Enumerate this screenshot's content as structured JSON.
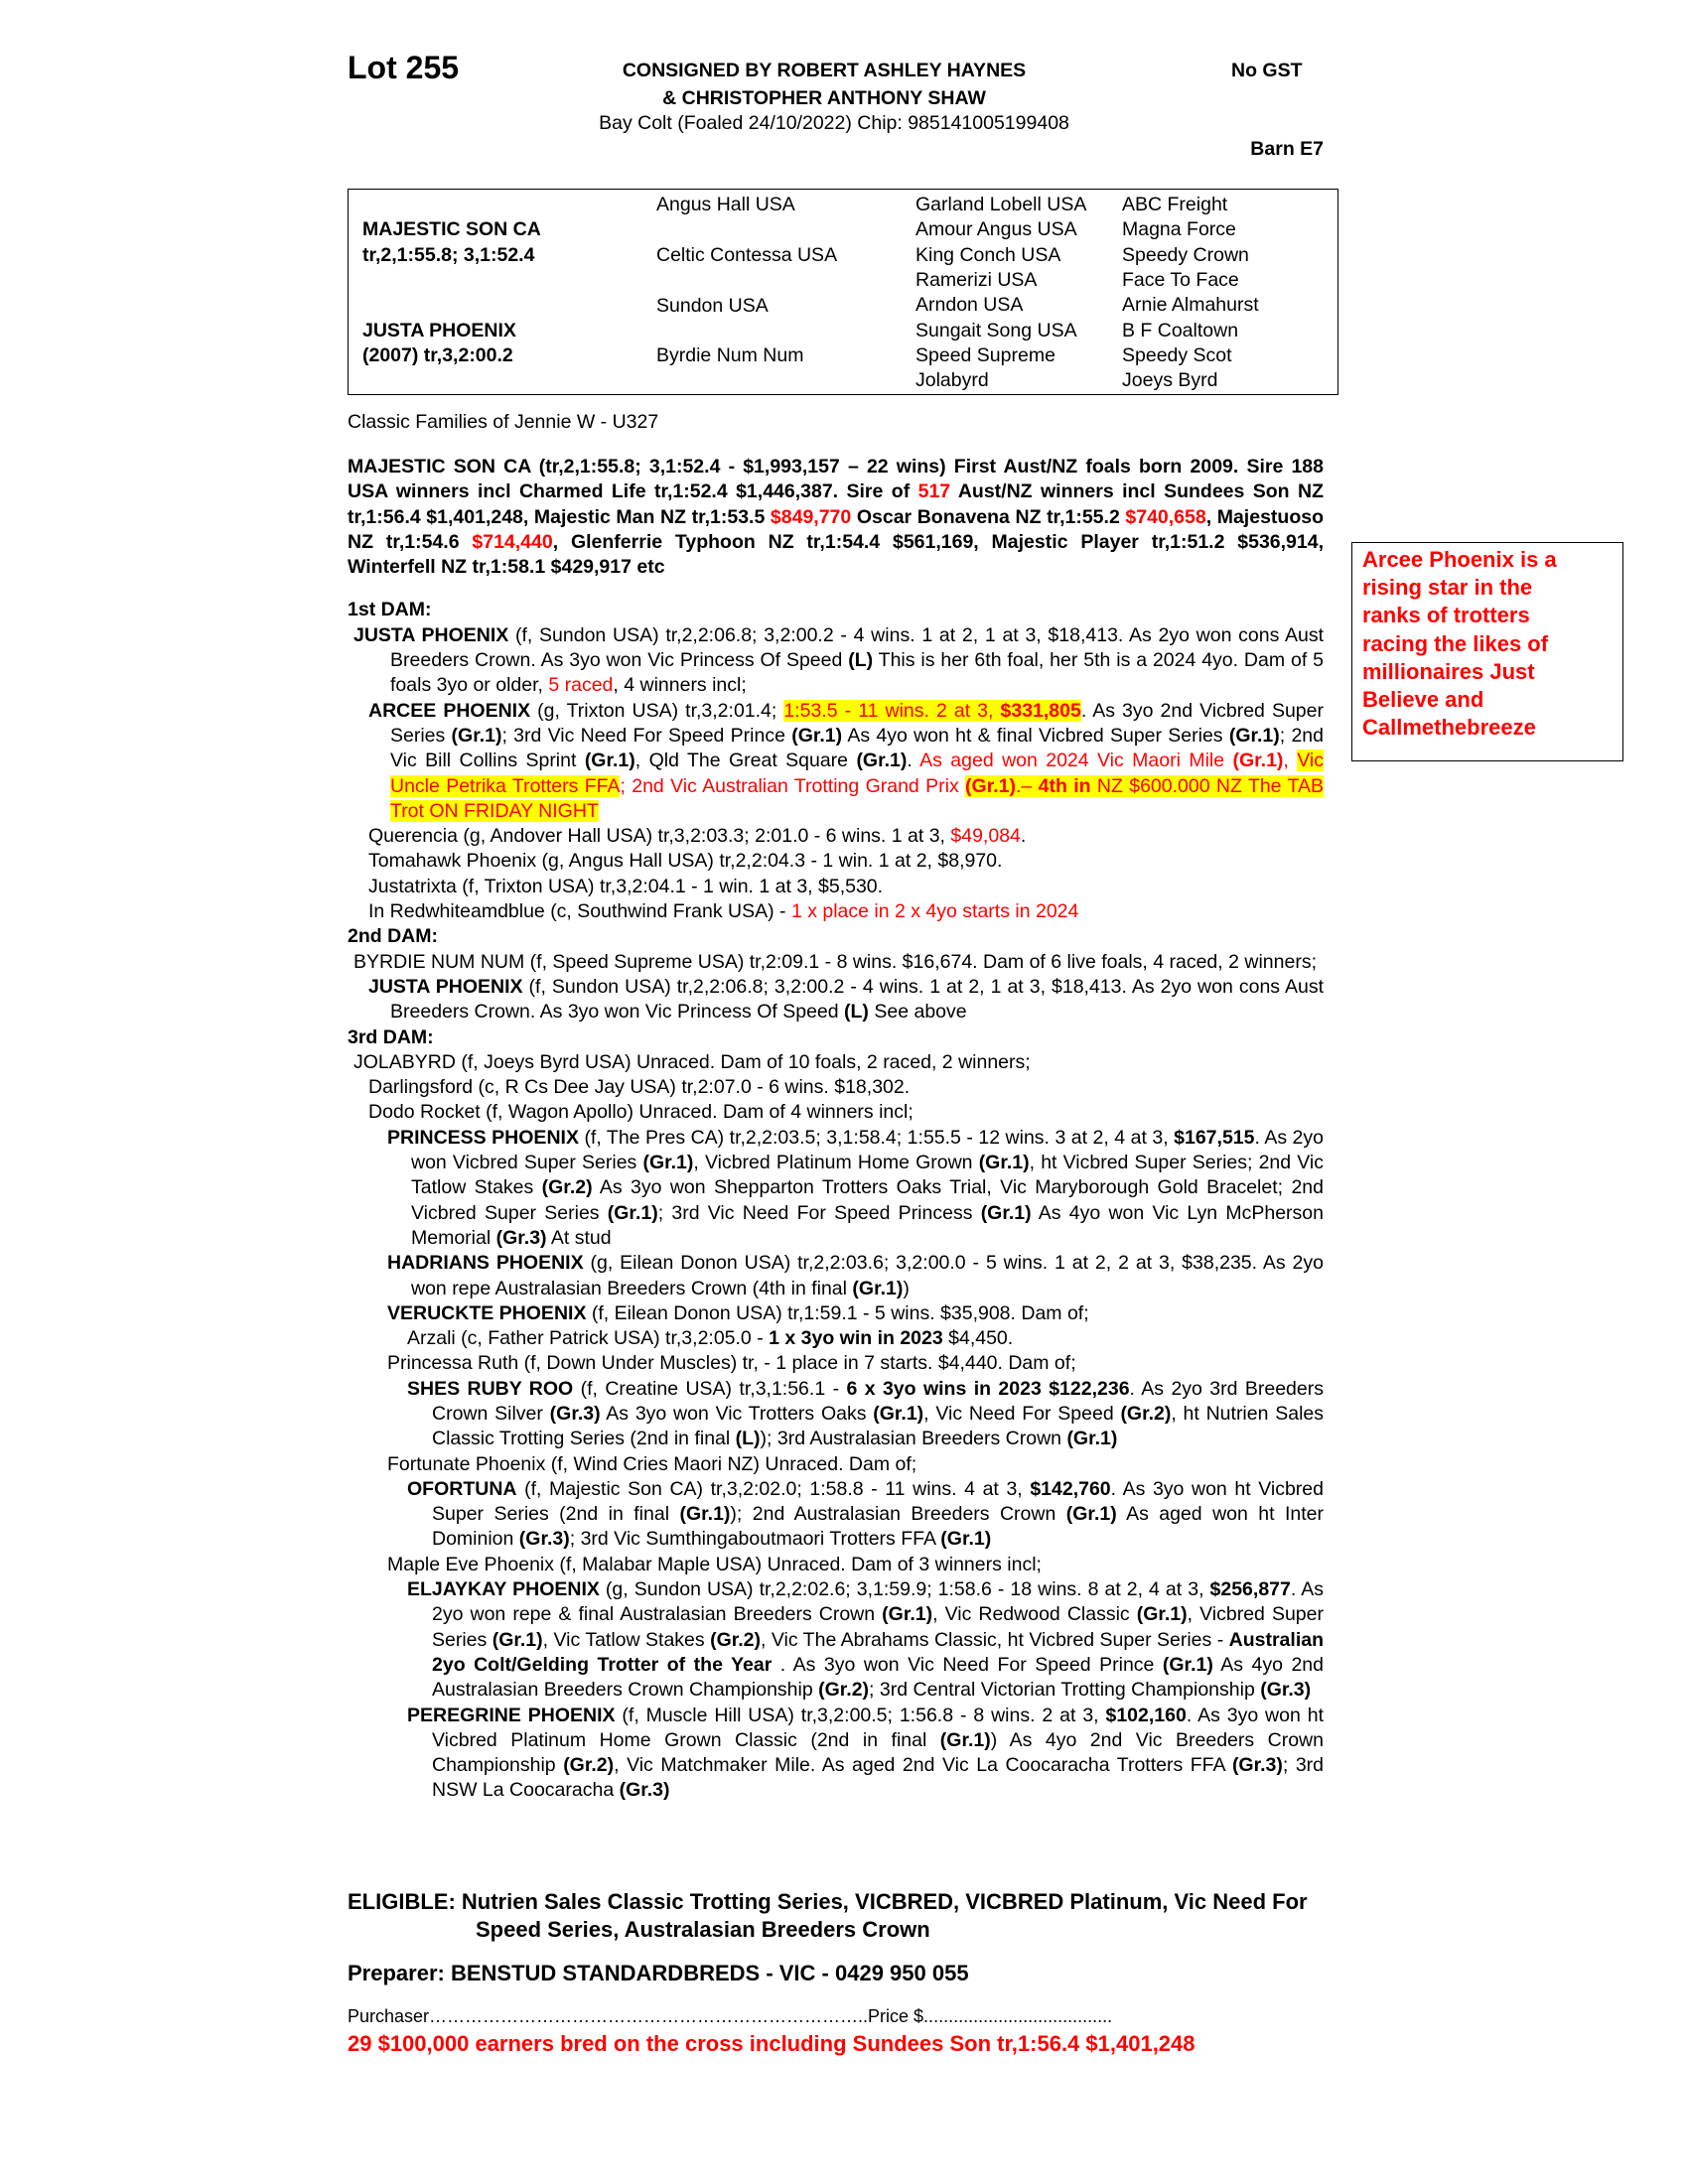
{
  "header": {
    "lot": "Lot 255",
    "consignor_line1": "CONSIGNED BY ROBERT ASHLEY HAYNES",
    "consignor_line2": "& CHRISTOPHER ANTHONY SHAW",
    "gst": "No GST",
    "description": "Bay Colt (Foaled  24/10/2022) Chip: 985141005199408",
    "barn": "Barn E7"
  },
  "pedigree": {
    "sire": "MAJESTIC SON CA",
    "sire_record": "tr,2,1:55.8; 3,1:52.4",
    "dam": "JUSTA PHOENIX",
    "dam_record": "(2007) tr,3,2:00.2",
    "grandparents": [
      "Angus Hall USA",
      "Celtic Contessa USA",
      "Sundon USA",
      "Byrdie Num Num"
    ],
    "great_grandparents": [
      "Garland Lobell USA",
      "Amour Angus USA",
      "King Conch USA",
      "Ramerizi USA",
      "Arndon USA",
      "Sungait Song USA",
      "Speed Supreme",
      "Jolabyrd"
    ],
    "third_generation": [
      "ABC Freight",
      "Magna Force",
      "Speedy Crown",
      "Face To Face",
      "Arnie Almahurst",
      "B F Coaltown",
      "Speedy Scot",
      "Joeys Byrd"
    ]
  },
  "family": "Classic Families of Jennie W - U327",
  "sidebar": [
    "Arcee Phoenix is a",
    "rising star in the",
    "ranks of trotters",
    "racing the likes of",
    "millionaires Just",
    "Believe and",
    "Callmethebreeze"
  ],
  "paragraphs": [
    [
      "MAJESTIC SON CA (tr,2,1:55.8; 3,1:52.4 - $1,993,157 – 22 wins) First Aust/NZ foals born 2009. Sire 188 USA winners incl Charmed Life tr,1:52.4 $1,446,387. Sire of ",
      {
        "text": "517",
        "style": "red"
      },
      " Aust/NZ winners incl Sundees Son NZ tr,1:56.4 $1,401,248, Majestic Man NZ tr,1:53.5 ",
      {
        "text": "$849,770",
        "style": "red"
      },
      " Oscar Bonavena NZ tr,1:55.2 ",
      {
        "text": "$740,658",
        "style": "red"
      },
      ", Majestuoso NZ tr,1:54.6 ",
      {
        "text": "$714,440",
        "style": "red"
      },
      ", Glenferrie Typhoon NZ tr,1:54.4 $561,169, Majestic Player tr,1:51.2 $536,914, Winterfell NZ tr,1:58.1 $429,917 etc"
    ],
    [
      "1st DAM:"
    ],
    [
      {
        "text": "JUSTA PHOENIX",
        "style": "bold"
      },
      " (f, Sundon USA) tr,2,2:06.8; 3,2:00.2 - 4 wins. 1 at 2, 1 at 3, $18,413. As 2yo won cons Aust Breeders Crown. As 3yo won Vic Princess Of Speed ",
      {
        "text": "(L)",
        "style": "bold"
      },
      " This is her 6th foal, her 5th is a 2024 4yo. Dam of 5 foals 3yo or older, ",
      {
        "text": "5 raced",
        "style": "red"
      },
      ", 4 winners incl;"
    ],
    [
      {
        "text": "ARCEE PHOENIX",
        "style": "bold"
      },
      " (g, Trixton USA) tr,3,2:01.4; ",
      {
        "text": "1:53.5 - 11 wins. 2 at 3, ",
        "style": "highlight-red"
      },
      {
        "text": "$331,805",
        "style": "highlight-bold-red"
      },
      ". As 3yo 2nd Vicbred Super Series ",
      {
        "text": "(Gr.1)",
        "style": "bold"
      },
      "; 3rd Vic Need For Speed Prince ",
      {
        "text": "(Gr.1)",
        "style": "bold"
      },
      " As 4yo won ht & final Vicbred Super Series ",
      {
        "text": "(Gr.1)",
        "style": "bold"
      },
      "; 2nd Vic Bill Collins Sprint ",
      {
        "text": "(Gr.1)",
        "style": "bold"
      },
      ", Qld The Great Square ",
      {
        "text": "(Gr.1)",
        "style": "bold"
      },
      ". ",
      {
        "text": "As aged won 2024 Vic Maori Mile ",
        "style": "red"
      },
      {
        "text": "(Gr.1)",
        "style": "bold-red"
      },
      {
        "text": ", ",
        "style": "red"
      },
      {
        "text": "Vic Uncle Petrika Trotters FFA",
        "style": "highlight-red"
      },
      {
        "text": "; 2nd Vic Australian Trotting Grand Prix ",
        "style": "red"
      },
      {
        "text": "(Gr.1)",
        "style": "highlight-bold-red"
      },
      {
        "text": ".– ",
        "style": "highlight-red"
      },
      {
        "text": "4th in",
        "style": "highlight-bold-red"
      },
      {
        "text": " NZ $600.000 NZ The TAB Trot ON FRIDAY NIGHT",
        "style": "highlight-red"
      }
    ],
    [
      "Querencia (g, Andover Hall USA) tr,3,2:03.3; 2:01.0 - 6 wins. 1 at 3, ",
      {
        "text": "$49,084",
        "style": "red"
      },
      "."
    ],
    [
      "Tomahawk Phoenix (g, Angus Hall USA) tr,2,2:04.3 - 1 win. 1 at 2, $8,970."
    ],
    [
      "Justatrixta (f, Trixton USA) tr,3,2:04.1 - 1 win. 1 at 3, $5,530."
    ],
    [
      "In Redwhiteamdblue (c, Southwind Frank USA) - ",
      {
        "text": "1 x place in 2 x 4yo starts in 2024",
        "style": "red"
      }
    ],
    [
      "2nd DAM:"
    ],
    [
      "BYRDIE NUM NUM (f, Speed Supreme USA) tr,2:09.1 - 8 wins. $16,674. Dam of 6 live foals, 4 raced, 2 winners;"
    ],
    [
      {
        "text": "JUSTA PHOENIX",
        "style": "bold"
      },
      " (f, Sundon USA) tr,2,2:06.8; 3,2:00.2 - 4 wins. 1 at 2, 1 at 3, $18,413. As 2yo won cons Aust Breeders Crown. As 3yo won Vic Princess Of Speed ",
      {
        "text": "(L)",
        "style": "bold"
      },
      "  See above"
    ],
    [
      "3rd DAM:"
    ],
    [
      "JOLABYRD (f, Joeys Byrd USA) Unraced. Dam of 10 foals, 2 raced, 2 winners;"
    ],
    [
      "Darlingsford (c, R Cs Dee Jay USA) tr,2:07.0 - 6 wins. $18,302."
    ],
    [
      "Dodo Rocket (f, Wagon Apollo) Unraced. Dam of 4 winners incl;"
    ],
    [
      {
        "text": "PRINCESS PHOENIX",
        "style": "bold"
      },
      " (f, The Pres CA) tr,2,2:03.5; 3,1:58.4; 1:55.5 - 12 wins. 3 at 2, 4 at 3, ",
      {
        "text": "$167,515",
        "style": "bold"
      },
      ". As 2yo won Vicbred Super Series ",
      {
        "text": "(Gr.1)",
        "style": "bold"
      },
      ", Vicbred Platinum Home Grown ",
      {
        "text": "(Gr.1)",
        "style": "bold"
      },
      ", ht Vicbred Super Series; 2nd Vic Tatlow Stakes ",
      {
        "text": "(Gr.2)",
        "style": "bold"
      },
      " As 3yo won Shepparton Trotters Oaks Trial, Vic Maryborough Gold Bracelet; 2nd Vicbred Super Series ",
      {
        "text": "(Gr.1)",
        "style": "bold"
      },
      "; 3rd Vic Need For Speed Princess ",
      {
        "text": "(Gr.1)",
        "style": "bold"
      },
      " As 4yo won Vic Lyn McPherson Memorial ",
      {
        "text": "(Gr.3)",
        "style": "bold"
      },
      " At stud"
    ],
    [
      {
        "text": "HADRIANS PHOENIX",
        "style": "bold"
      },
      " (g, Eilean Donon USA) tr,2,2:03.6; 3,2:00.0 - 5 wins. 1 at 2, 2 at 3, $38,235. As 2yo won repe Australasian Breeders Crown (4th in final ",
      {
        "text": "(Gr.1)",
        "style": "bold"
      },
      ")"
    ],
    [
      {
        "text": "VERUCKTE PHOENIX",
        "style": "bold"
      },
      " (f, Eilean Donon USA) tr,1:59.1 - 5 wins. $35,908. Dam of;"
    ],
    [
      "Arzali (c, Father Patrick USA) tr,3,2:05.0 - ",
      {
        "text": "1 x 3yo win in 2023",
        "style": "bold"
      },
      " $4,450."
    ],
    [
      "Princessa Ruth (f, Down Under Muscles) tr, - 1 place in 7 starts. $4,440. Dam of;"
    ],
    [
      {
        "text": "SHES RUBY ROO",
        "style": "bold"
      },
      " (f, Creatine USA) tr,3,1:56.1 - ",
      {
        "text": "6 x 3yo wins in 2023 $122,236",
        "style": "bold"
      },
      ". As 2yo 3rd Breeders Crown Silver ",
      {
        "text": "(Gr.3)",
        "style": "bold"
      },
      " As 3yo won Vic Trotters Oaks ",
      {
        "text": "(Gr.1)",
        "style": "bold"
      },
      ", Vic Need For Speed ",
      {
        "text": "(Gr.2)",
        "style": "bold"
      },
      ", ht Nutrien Sales Classic Trotting Series (2nd in final ",
      {
        "text": "(L)",
        "style": "bold"
      },
      "); 3rd Australasian Breeders Crown ",
      {
        "text": "(Gr.1)",
        "style": "bold"
      }
    ],
    [
      "Fortunate Phoenix (f, Wind Cries Maori NZ) Unraced. Dam of;"
    ],
    [
      {
        "text": "OFORTUNA",
        "style": "bold"
      },
      " (f, Majestic Son CA) tr,3,2:02.0; 1:58.8 - 11 wins. 4 at 3, ",
      {
        "text": "$142,760",
        "style": "bold"
      },
      ". As 3yo won ht Vicbred Super Series (2nd in final ",
      {
        "text": "(Gr.1)",
        "style": "bold"
      },
      "); 2nd Australasian Breeders Crown ",
      {
        "text": "(Gr.1)",
        "style": "bold"
      },
      " As aged won ht Inter Dominion ",
      {
        "text": "(Gr.3)",
        "style": "bold"
      },
      "; 3rd Vic Sumthingaboutmaori Trotters FFA ",
      {
        "text": "(Gr.1)",
        "style": "bold"
      }
    ],
    [
      "Maple Eve Phoenix (f, Malabar Maple USA) Unraced. Dam of 3 winners incl;"
    ],
    [
      {
        "text": "ELJAYKAY PHOENIX",
        "style": "bold"
      },
      " (g, Sundon USA) tr,2,2:02.6; 3,1:59.9; 1:58.6 - 18 wins. 8 at 2, 4 at 3, ",
      {
        "text": "$256,877",
        "style": "bold"
      },
      ". As 2yo won repe & final Australasian Breeders Crown ",
      {
        "text": "(Gr.1)",
        "style": "bold"
      },
      ", Vic Redwood Classic ",
      {
        "text": "(Gr.1)",
        "style": "bold"
      },
      ", Vicbred Super Series ",
      {
        "text": "(Gr.1)",
        "style": "bold"
      },
      ", Vic Tatlow Stakes ",
      {
        "text": "(Gr.2)",
        "style": "bold"
      },
      ", Vic The Abrahams Classic, ht Vicbred Super Series - ",
      {
        "text": "Australian 2yo Colt/Gelding Trotter of the Year",
        "style": "bold"
      },
      " . As 3yo won Vic Need For Speed Prince ",
      {
        "text": "(Gr.1)",
        "style": "bold"
      },
      " As 4yo 2nd Australasian Breeders Crown Championship ",
      {
        "text": "(Gr.2)",
        "style": "bold"
      },
      "; 3rd Central Victorian Trotting Championship ",
      {
        "text": "(Gr.3)",
        "style": "bold"
      }
    ],
    [
      {
        "text": "PEREGRINE PHOENIX",
        "style": "bold"
      },
      " (f, Muscle Hill USA) tr,3,2:00.5; 1:56.8 - 8 wins. 2 at 3, ",
      {
        "text": "$102,160",
        "style": "bold"
      },
      ". As 3yo won ht Vicbred Platinum Home Grown Classic (2nd in final ",
      {
        "text": "(Gr.1)",
        "style": "bold"
      },
      ") As 4yo 2nd Vic Breeders Crown Championship ",
      {
        "text": "(Gr.2)",
        "style": "bold"
      },
      ", Vic Matchmaker Mile. As aged 2nd Vic La Coocaracha Trotters FFA ",
      {
        "text": "(Gr.3)",
        "style": "bold"
      },
      "; 3rd NSW La Coocaracha ",
      {
        "text": "(Gr.3)",
        "style": "bold"
      }
    ]
  ],
  "eligible": "ELIGIBLE: Nutrien Sales Classic Trotting Series, VICBRED, VICBRED Platinum, Vic Need For Speed Series, Australasian Breeders Crown",
  "preparer": "Preparer: BENSTUD STANDARDBREDS - VIC - 0429 950 055",
  "purchaser": "Purchaser………………………………………………………………..Price $......................................",
  "cross_note": "29 $100,000 earners bred on the cross including Sundees Son tr,1:56.4 $1,401,248"
}
